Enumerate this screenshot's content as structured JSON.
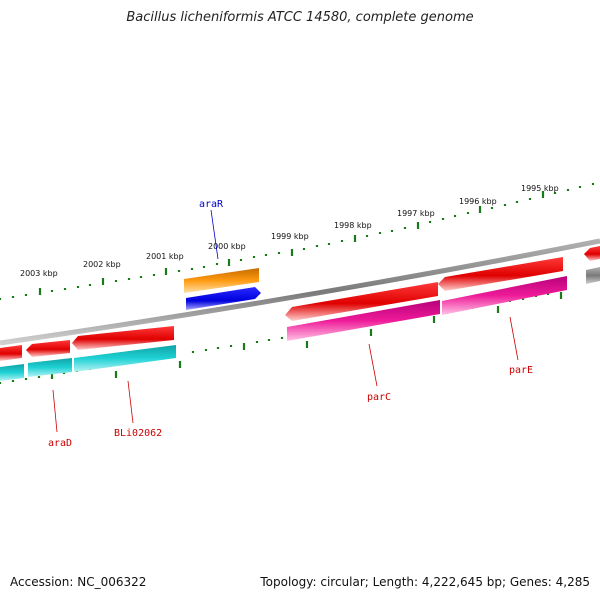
{
  "header": {
    "title": "Bacillus licheniformis ATCC 14580, complete genome"
  },
  "footer": {
    "accession": "Accession: NC_006322",
    "summary": "Topology: circular; Length: 4,222,645 bp; Genes: 4,285"
  },
  "scale": {
    "ticks": [
      "2003 kbp",
      "2002 kbp",
      "2001 kbp",
      "2000 kbp",
      "1999 kbp",
      "1998 kbp",
      "1997 kbp",
      "1996 kbp",
      "1995 kbp"
    ]
  },
  "genes": {
    "araR": "araR",
    "araD": "araD",
    "BLi02062": "BLi02062",
    "parC": "parC",
    "parE": "parE"
  },
  "colors": {
    "forward_cds": "#e60000",
    "reverse_cds_cyan": "#17c9cc",
    "reverse_cds_magenta": "#e0148f",
    "araR_gene": "#f08c00",
    "araR_cds": "#0000e6",
    "backbone": "#808080",
    "ticks": "#1a7a1a",
    "label_red": "#cc0000",
    "label_blue": "#0000cc"
  }
}
